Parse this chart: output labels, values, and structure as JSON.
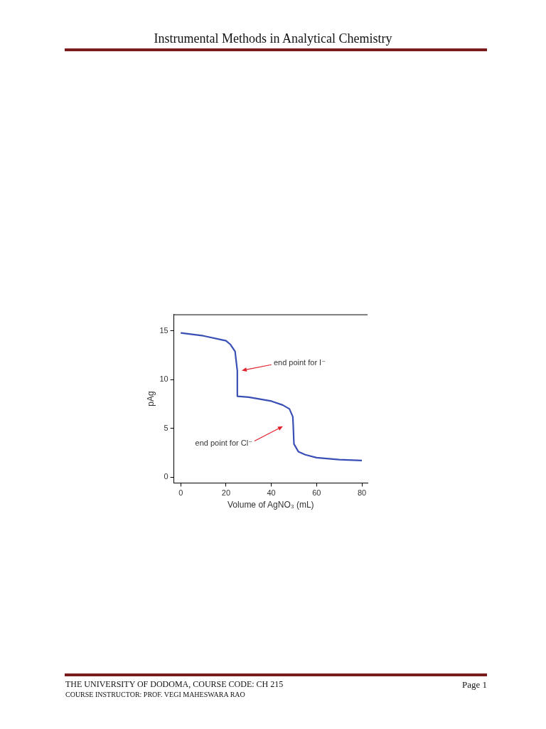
{
  "chart_data": {
    "type": "line",
    "title": "Instrumental Methods in Analytical Chemistry",
    "xlabel": "Volume of AgNO₃ (mL)",
    "ylabel": "pAg",
    "series": [
      {
        "color": "#3a4fb5",
        "x": [
          0,
          10,
          20,
          22,
          24,
          25,
          25,
          30,
          40,
          45,
          48,
          49.5,
          49.7,
          50,
          52,
          55,
          60,
          70,
          80
        ],
        "values": [
          14.8,
          14.5,
          14.0,
          13.6,
          12.9,
          10.9,
          8.3,
          8.2,
          7.8,
          7.4,
          7.0,
          6.2,
          5.2,
          3.4,
          2.6,
          2.3,
          2.0,
          1.8,
          1.7
        ]
      }
    ],
    "xlim": [
      -3,
      82.5
    ],
    "ylim": [
      -0.6,
      16.7
    ],
    "xticks": [
      0,
      20,
      40,
      60,
      80
    ],
    "yticks": [
      0,
      5,
      10,
      15
    ],
    "grid": false,
    "legend": false,
    "marker": "none",
    "line_style": "solid",
    "annotations": [
      "end point for I⁻",
      "end point for Cl⁻",
      "THE UNIVERSITY OF DODOMA, COURSE CODE: CH 215",
      "COURSE INSTRUCTOR: PROF. VEGI MAHESWARA RAO",
      "Page 1"
    ]
  }
}
